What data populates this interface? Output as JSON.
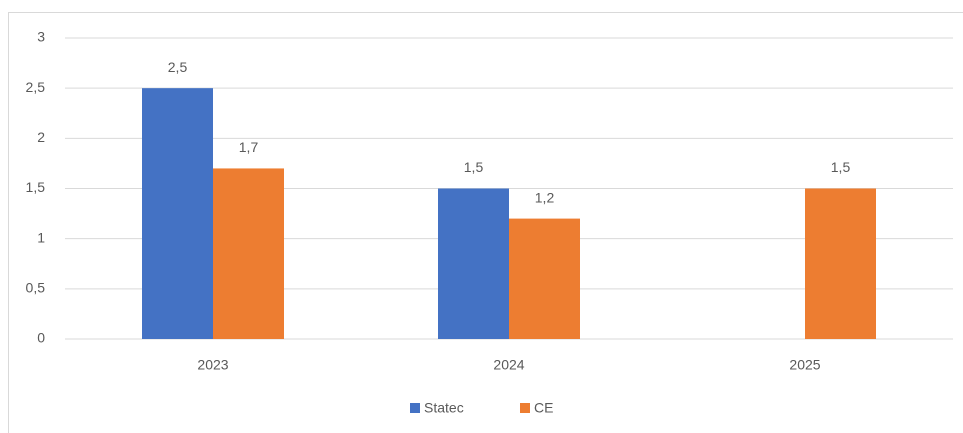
{
  "chart_data": {
    "type": "bar",
    "categories": [
      "2023",
      "2024",
      "2025"
    ],
    "series": [
      {
        "name": "Statec",
        "color": "#4472c4",
        "values": [
          2.5,
          1.5,
          null
        ],
        "value_labels": [
          "2,5",
          "1,5",
          null
        ]
      },
      {
        "name": "CE",
        "color": "#ed7d31",
        "values": [
          1.7,
          1.2,
          1.5
        ],
        "value_labels": [
          "1,7",
          "1,2",
          "1,5"
        ]
      }
    ],
    "ylim": [
      0,
      3
    ],
    "yticks": [
      0,
      {
        "value": 0.5,
        "label": "0,5"
      },
      1,
      {
        "value": 1.5,
        "label": "1,5"
      },
      2,
      {
        "value": 2.5,
        "label": "2,5"
      },
      3
    ],
    "grid": true,
    "legend": "bottom"
  }
}
